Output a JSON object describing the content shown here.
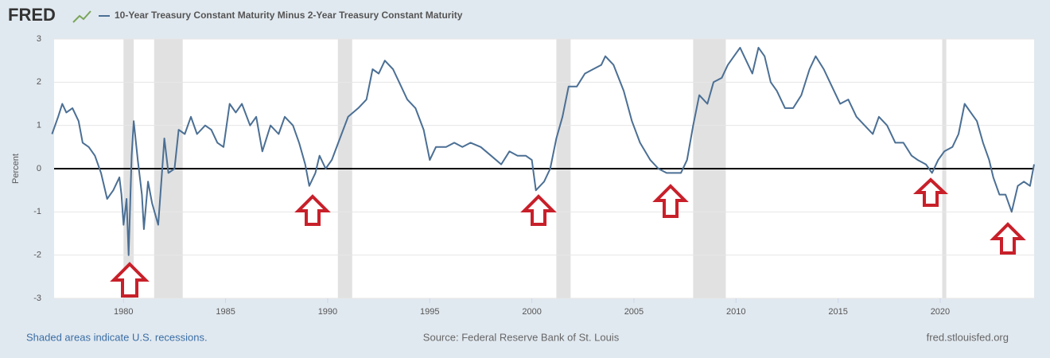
{
  "chart_data": {
    "type": "line",
    "logo": "FRED",
    "footer_left": "Shaded areas indicate U.S. recessions.",
    "footer_center": "Source: Federal Reserve Bank of St. Louis",
    "footer_right": "fred.stlouisfed.org",
    "ylabel": "Percent",
    "xlim": [
      1976.6,
      2024.6
    ],
    "ylim": [
      -3,
      3
    ],
    "xticks": [
      1980,
      1985,
      1990,
      1995,
      2000,
      2005,
      2010,
      2015,
      2020
    ],
    "yticks": [
      -3,
      -2,
      -1,
      0,
      1,
      2,
      3
    ],
    "grid": true,
    "recessions": [
      [
        1980.0,
        1980.5
      ],
      [
        1981.5,
        1982.9
      ],
      [
        1990.5,
        1991.2
      ],
      [
        2001.2,
        2001.9
      ],
      [
        2007.9,
        2009.5
      ],
      [
        2020.1,
        2020.3
      ]
    ],
    "series": [
      {
        "name": "10-Year Treasury Constant Maturity Minus 2-Year Treasury Constant Maturity",
        "color": "#4b6f94",
        "x": [
          1976.5,
          1976.8,
          1977.0,
          1977.2,
          1977.5,
          1977.8,
          1978.0,
          1978.3,
          1978.6,
          1978.9,
          1979.2,
          1979.5,
          1979.8,
          1979.9,
          1980.0,
          1980.15,
          1980.25,
          1980.4,
          1980.5,
          1980.7,
          1980.9,
          1981.0,
          1981.2,
          1981.4,
          1981.7,
          1981.9,
          1982.0,
          1982.2,
          1982.5,
          1982.7,
          1983.0,
          1983.3,
          1983.6,
          1984.0,
          1984.3,
          1984.6,
          1984.9,
          1985.2,
          1985.5,
          1985.8,
          1986.2,
          1986.5,
          1986.8,
          1987.2,
          1987.6,
          1987.9,
          1988.3,
          1988.6,
          1988.9,
          1989.1,
          1989.4,
          1989.6,
          1989.9,
          1990.2,
          1990.6,
          1991.0,
          1991.5,
          1991.9,
          1992.2,
          1992.5,
          1992.8,
          1993.2,
          1993.5,
          1993.9,
          1994.3,
          1994.7,
          1995.0,
          1995.3,
          1995.8,
          1996.2,
          1996.6,
          1997.0,
          1997.5,
          1998.0,
          1998.5,
          1998.9,
          1999.3,
          1999.7,
          2000.0,
          2000.2,
          2000.6,
          2000.9,
          2001.2,
          2001.5,
          2001.8,
          2002.2,
          2002.6,
          2003.0,
          2003.4,
          2003.6,
          2004.0,
          2004.5,
          2004.9,
          2005.3,
          2005.8,
          2006.2,
          2006.6,
          2006.9,
          2007.3,
          2007.6,
          2007.9,
          2008.2,
          2008.6,
          2008.9,
          2009.3,
          2009.6,
          2009.9,
          2010.2,
          2010.5,
          2010.8,
          2011.1,
          2011.4,
          2011.7,
          2012.0,
          2012.4,
          2012.8,
          2013.2,
          2013.6,
          2013.9,
          2014.3,
          2014.7,
          2015.1,
          2015.5,
          2015.9,
          2016.3,
          2016.7,
          2017.0,
          2017.4,
          2017.8,
          2018.2,
          2018.6,
          2018.9,
          2019.3,
          2019.6,
          2019.9,
          2020.2,
          2020.6,
          2020.9,
          2021.2,
          2021.5,
          2021.8,
          2022.1,
          2022.4,
          2022.6,
          2022.9,
          2023.2,
          2023.5,
          2023.8,
          2024.1,
          2024.4,
          2024.6
        ],
        "values": [
          0.8,
          1.2,
          1.5,
          1.3,
          1.4,
          1.1,
          0.6,
          0.5,
          0.3,
          -0.1,
          -0.7,
          -0.5,
          -0.2,
          -0.6,
          -1.3,
          -0.7,
          -2.0,
          0.3,
          1.1,
          0.2,
          -0.6,
          -1.4,
          -0.3,
          -0.8,
          -1.3,
          0.0,
          0.7,
          -0.1,
          0.0,
          0.9,
          0.8,
          1.2,
          0.8,
          1.0,
          0.9,
          0.6,
          0.5,
          1.5,
          1.3,
          1.5,
          1.0,
          1.2,
          0.4,
          1.0,
          0.8,
          1.2,
          1.0,
          0.6,
          0.1,
          -0.4,
          -0.1,
          0.3,
          0.0,
          0.2,
          0.7,
          1.2,
          1.4,
          1.6,
          2.3,
          2.2,
          2.5,
          2.3,
          2.0,
          1.6,
          1.4,
          0.9,
          0.2,
          0.5,
          0.5,
          0.6,
          0.5,
          0.6,
          0.5,
          0.3,
          0.1,
          0.4,
          0.3,
          0.3,
          0.2,
          -0.5,
          -0.3,
          0.0,
          0.7,
          1.2,
          1.9,
          1.9,
          2.2,
          2.3,
          2.4,
          2.6,
          2.4,
          1.8,
          1.1,
          0.6,
          0.2,
          0.0,
          -0.1,
          -0.1,
          -0.1,
          0.2,
          1.0,
          1.7,
          1.5,
          2.0,
          2.1,
          2.4,
          2.6,
          2.8,
          2.5,
          2.2,
          2.8,
          2.6,
          2.0,
          1.8,
          1.4,
          1.4,
          1.7,
          2.3,
          2.6,
          2.3,
          1.9,
          1.5,
          1.6,
          1.2,
          1.0,
          0.8,
          1.2,
          1.0,
          0.6,
          0.6,
          0.3,
          0.2,
          0.1,
          -0.1,
          0.2,
          0.4,
          0.5,
          0.8,
          1.5,
          1.3,
          1.1,
          0.6,
          0.2,
          -0.2,
          -0.6,
          -0.6,
          -1.0,
          -0.4,
          -0.3,
          -0.4,
          0.1
        ]
      }
    ]
  }
}
